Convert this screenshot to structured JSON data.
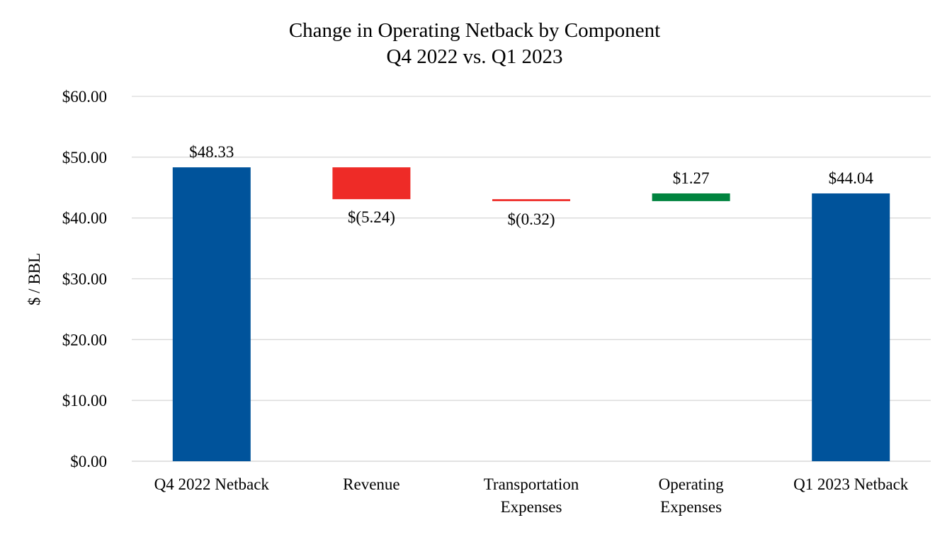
{
  "chart_data": {
    "type": "waterfall",
    "title": [
      "Change in Operating Netback by Component",
      "Q4 2022 vs. Q1 2023"
    ],
    "ylabel": "$ / BBL",
    "xlabel": "",
    "ylim": [
      0,
      60
    ],
    "y_ticks": [
      0,
      10,
      20,
      30,
      40,
      50,
      60
    ],
    "y_tick_labels": [
      "$0.00",
      "$10.00",
      "$20.00",
      "$30.00",
      "$40.00",
      "$50.00",
      "$60.00"
    ],
    "grid": true,
    "legend": "none",
    "categories": [
      [
        "Q4 2022 Netback"
      ],
      [
        "Revenue"
      ],
      [
        "Transportation",
        "Expenses"
      ],
      [
        "Operating",
        "Expenses"
      ],
      [
        "Q1 2023 Netback"
      ]
    ],
    "bars": [
      {
        "kind": "total",
        "start": 0,
        "end": 48.33,
        "value": 48.33,
        "label": "$48.33",
        "color": "#00539b"
      },
      {
        "kind": "decrease",
        "start": 48.33,
        "end": 43.09,
        "value": -5.24,
        "label": "$(5.24)",
        "color": "#ee2b27"
      },
      {
        "kind": "decrease",
        "start": 43.09,
        "end": 42.77,
        "value": -0.32,
        "label": "$(0.32)",
        "color": "#ee2b27"
      },
      {
        "kind": "increase",
        "start": 42.77,
        "end": 44.04,
        "value": 1.27,
        "label": "$1.27",
        "color": "#00843f"
      },
      {
        "kind": "total",
        "start": 0,
        "end": 44.04,
        "value": 44.04,
        "label": "$44.04",
        "color": "#00539b"
      }
    ],
    "colors": {
      "total": "#00539b",
      "decrease": "#ee2b27",
      "increase": "#00843f",
      "gridline": "#d9d9d9",
      "baseline": "#d9d9d9"
    }
  }
}
